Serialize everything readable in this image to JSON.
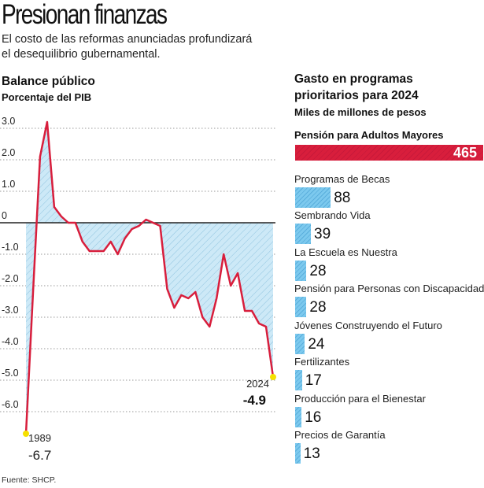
{
  "header": {
    "title": "Presionan finanzas",
    "subtitle_line1": "El costo de las reformas anunciadas profundizará",
    "subtitle_line2": "el desequilibrio gubernamental."
  },
  "source": "Fuente: SHCP.",
  "colors": {
    "line": "#d81e3c",
    "fill": "#cde9f7",
    "hatch": "#7fb9d8",
    "highlight_bar": "#d81e3c",
    "bar": "#7cc9ee",
    "marker": "#f5e000"
  },
  "chart_data": [
    {
      "type": "line",
      "title": "Balance público",
      "subtitle": "Porcentaje del PIB",
      "ylim": [
        -6.7,
        3.2
      ],
      "yticks": [
        3,
        2,
        1,
        0,
        -1,
        -2,
        -3,
        -4,
        -5,
        -6
      ],
      "ytick_labels": [
        "3.0",
        "2.0",
        "1.0",
        "0",
        "-1.0",
        "-2.0",
        "-3.0",
        "-4.0",
        "-5.0",
        "-6.0"
      ],
      "grid": true,
      "fill": "area between line and zero, hatched light blue",
      "x": [
        1989,
        1990,
        1991,
        1992,
        1993,
        1994,
        1995,
        1996,
        1997,
        1998,
        1999,
        2000,
        2001,
        2002,
        2003,
        2004,
        2005,
        2006,
        2007,
        2008,
        2009,
        2010,
        2011,
        2012,
        2013,
        2014,
        2015,
        2016,
        2017,
        2018,
        2019,
        2020,
        2021,
        2022,
        2023,
        2024
      ],
      "values": [
        -6.7,
        -2.2,
        2.1,
        3.2,
        0.5,
        0.2,
        0,
        0,
        -0.6,
        -0.9,
        -0.9,
        -0.9,
        -0.6,
        -1.0,
        -0.5,
        -0.2,
        -0.1,
        0.1,
        0,
        -0.1,
        -2.1,
        -2.7,
        -2.3,
        -2.4,
        -2.2,
        -3.0,
        -3.3,
        -2.4,
        -1.0,
        -2.0,
        -1.6,
        -2.8,
        -2.8,
        -3.2,
        -3.3,
        -4.9
      ],
      "annotations": [
        {
          "year": "1989",
          "value": "-6.7"
        },
        {
          "year": "2024",
          "value": "-4.9"
        }
      ]
    },
    {
      "type": "bar",
      "orientation": "horizontal",
      "title_line1": "Gasto en programas",
      "title_line2": "prioritarios para 2024",
      "subtitle": "Miles de millones de pesos",
      "categories": [
        "Pensión para Adultos Mayores",
        "Programas de Becas",
        "Sembrando Vida",
        "La Escuela es Nuestra",
        "Pensión para Personas con Discapacidad",
        "Jóvenes Construyendo el Futuro",
        "Fertilizantes",
        "Producción para el Bienestar",
        "Precios de Garantía"
      ],
      "values": [
        465,
        88,
        39,
        28,
        28,
        24,
        17,
        16,
        13
      ],
      "value_labels": [
        "465",
        "88",
        "39",
        "28",
        "28",
        "24",
        "17",
        "16",
        "13"
      ]
    }
  ]
}
